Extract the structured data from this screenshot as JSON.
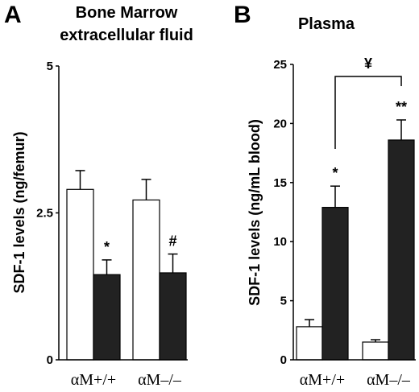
{
  "chart_data": [
    {
      "type": "bar",
      "panel": "A",
      "title_lines": [
        "Bone Marrow",
        "extracellular fluid"
      ],
      "ylabel": "SDF-1 levels  (ng/femur)",
      "ylim": [
        0,
        5
      ],
      "yticks": [
        "0",
        "2.5",
        "5"
      ],
      "ytick_values": [
        0,
        2.5,
        5
      ],
      "categories": [
        "αM+/+",
        "αM–/–"
      ],
      "series": [
        {
          "fill": "#ffffff",
          "values": [
            2.9,
            2.72
          ],
          "errors": [
            0.32,
            0.35
          ]
        },
        {
          "fill": "#222222",
          "values": [
            1.45,
            1.48
          ],
          "errors": [
            0.25,
            0.32
          ]
        }
      ],
      "annotations": [
        "",
        "",
        "*",
        "#"
      ]
    },
    {
      "type": "bar",
      "panel": "B",
      "title_lines": [
        "Plasma"
      ],
      "ylabel": "SDF-1 levels  (ng/mL blood)",
      "ylim": [
        0,
        25
      ],
      "yticks": [
        "0",
        "5",
        "10",
        "15",
        "20",
        "25"
      ],
      "ytick_values": [
        0,
        5,
        10,
        15,
        20,
        25
      ],
      "categories": [
        "αM+/+",
        "αM–/–"
      ],
      "series": [
        {
          "fill": "#ffffff",
          "values": [
            2.8,
            1.5
          ],
          "errors": [
            0.6,
            0.2
          ]
        },
        {
          "fill": "#222222",
          "values": [
            12.9,
            18.6
          ],
          "errors": [
            1.8,
            1.7
          ]
        }
      ],
      "annotations": [
        "",
        "",
        "*",
        "**"
      ],
      "bracket_label": "¥"
    }
  ]
}
